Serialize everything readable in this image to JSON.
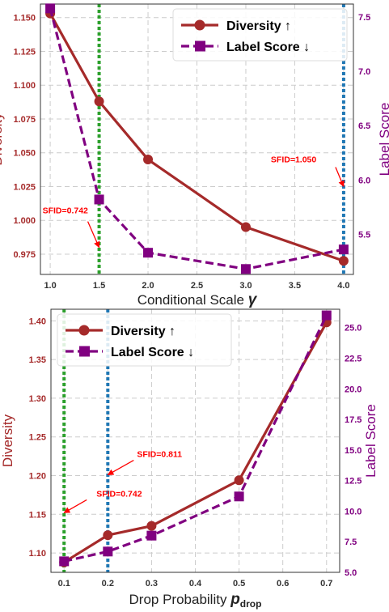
{
  "colors": {
    "diversity": "#a52a2a",
    "label_score": "#800080",
    "green_line": "#2ca02c",
    "blue_line": "#1f77b4",
    "annotation": "#ff0000"
  },
  "chart_data": [
    {
      "type": "line",
      "xlabel": "Conditional Scale",
      "xlabel_symbol": "γ",
      "ylabel": "Diversity",
      "y2label": "Label Score",
      "xlim": [
        0.9,
        4.1
      ],
      "ylim": [
        0.96,
        1.16
      ],
      "y2lim": [
        5.13,
        7.62
      ],
      "xticks": [
        "1.0",
        "1.5",
        "2.0",
        "2.5",
        "3.0",
        "3.5",
        "4.0"
      ],
      "yticks": [
        "0.975",
        "1.000",
        "1.025",
        "1.050",
        "1.075",
        "1.100",
        "1.125",
        "1.150"
      ],
      "y2ticks": [
        "5.5",
        "6.0",
        "6.5",
        "7.0",
        "7.5"
      ],
      "grid": true,
      "legend_position": "top-right",
      "series": [
        {
          "name": "Diversity ↑",
          "axis": "left",
          "marker": "circle",
          "style": "solid",
          "x": [
            1.0,
            1.5,
            2.0,
            3.0,
            4.0
          ],
          "values": [
            1.153,
            1.088,
            1.045,
            0.995,
            0.97
          ]
        },
        {
          "name": "Label Score ↓",
          "axis": "right",
          "marker": "square",
          "style": "dashed",
          "x": [
            1.0,
            1.5,
            2.0,
            3.0,
            4.0
          ],
          "values": [
            7.58,
            5.82,
            5.33,
            5.18,
            5.36
          ]
        }
      ],
      "vlines": [
        {
          "x": 1.5,
          "color": "green"
        },
        {
          "x": 4.0,
          "color": "blue"
        }
      ],
      "annotations": [
        {
          "text": "SFID=0.742",
          "at_x": 1.5,
          "at_y": 0.98
        },
        {
          "text": "SFID=1.050",
          "at_x": 4.0,
          "at_y": 1.025
        }
      ]
    },
    {
      "type": "line",
      "xlabel": "Drop Probability",
      "xlabel_symbol": "p",
      "xlabel_sub": "drop",
      "ylabel": "Diversity",
      "y2label": "Label Score",
      "xlim": [
        0.07,
        0.73
      ],
      "ylim": [
        1.075,
        1.415
      ],
      "y2lim": [
        5.0,
        26.5
      ],
      "xticks": [
        "0.1",
        "0.2",
        "0.3",
        "0.4",
        "0.5",
        "0.6",
        "0.7"
      ],
      "yticks": [
        "1.10",
        "1.15",
        "1.20",
        "1.25",
        "1.30",
        "1.35",
        "1.40"
      ],
      "y2ticks": [
        "5.0",
        "7.5",
        "10.0",
        "12.5",
        "15.0",
        "17.5",
        "20.0",
        "22.5",
        "25.0"
      ],
      "grid": true,
      "legend_position": "top-left",
      "series": [
        {
          "name": "Diversity ↑",
          "axis": "left",
          "marker": "circle",
          "style": "solid",
          "x": [
            0.1,
            0.2,
            0.3,
            0.5,
            0.7
          ],
          "values": [
            1.088,
            1.123,
            1.135,
            1.194,
            1.398
          ]
        },
        {
          "name": "Label Score ↓",
          "axis": "right",
          "marker": "square",
          "style": "dashed",
          "x": [
            0.1,
            0.2,
            0.3,
            0.5,
            0.7
          ],
          "values": [
            5.9,
            6.7,
            8.0,
            11.2,
            26.0
          ]
        }
      ],
      "vlines": [
        {
          "x": 0.1,
          "color": "green"
        },
        {
          "x": 0.2,
          "color": "blue"
        }
      ],
      "annotations": [
        {
          "text": "SFID=0.742",
          "at_x": 0.1,
          "at_y": 1.152
        },
        {
          "text": "SFID=0.811",
          "at_x": 0.2,
          "at_y": 1.201
        }
      ]
    }
  ]
}
